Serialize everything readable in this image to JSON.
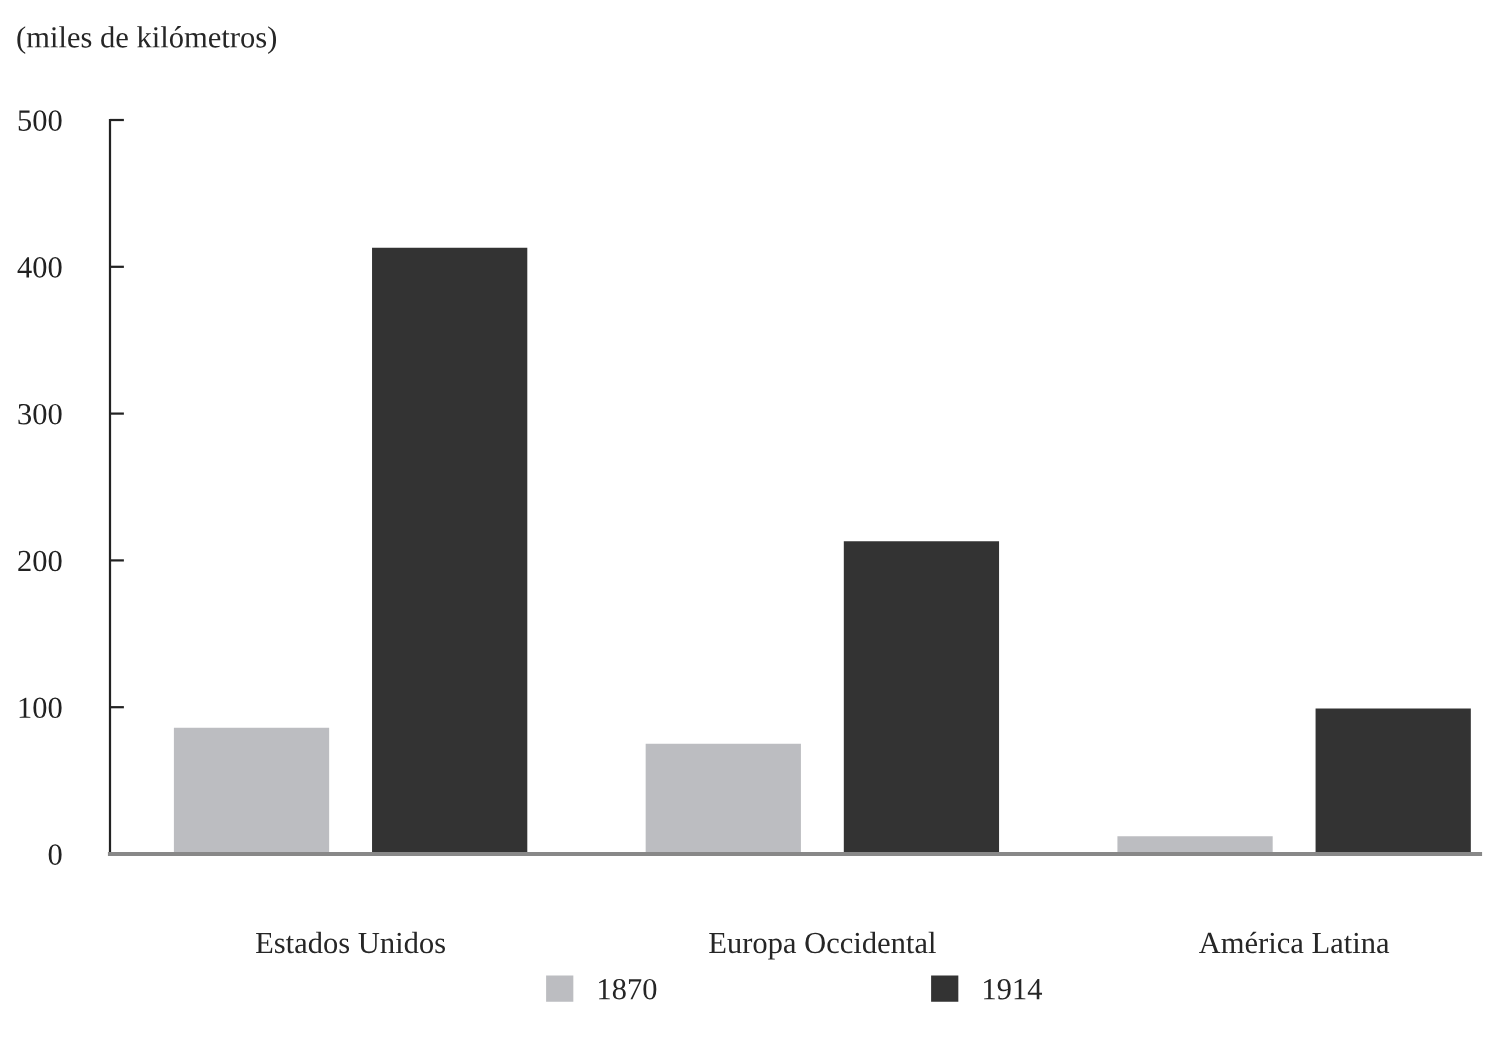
{
  "chart_data": {
    "type": "bar",
    "ylabel": "(miles de kilómetros)",
    "categories": [
      "Estados Unidos",
      "Europa Occidental",
      "América Latina"
    ],
    "series": [
      {
        "name": "1870",
        "color": "#bcbdc1",
        "values": [
          87,
          76,
          13
        ]
      },
      {
        "name": "1914",
        "color": "#333333",
        "values": [
          414,
          214,
          100
        ]
      }
    ],
    "ylim": [
      0,
      500
    ],
    "yticks": [
      0,
      100,
      200,
      300,
      400,
      500
    ],
    "grid": false,
    "legend": "bottom"
  }
}
